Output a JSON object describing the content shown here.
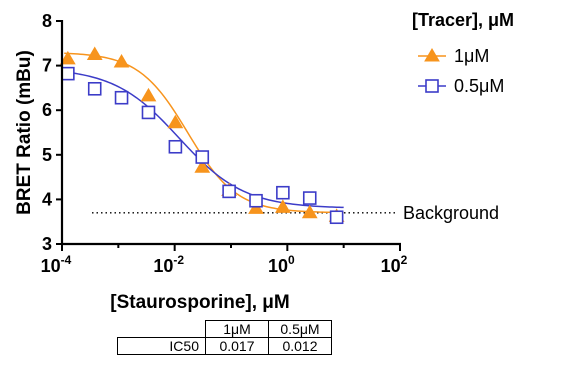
{
  "chart_data": {
    "type": "scatter",
    "xlabel": "[Staurosporine], μM",
    "ylabel": "BRET Ratio (mBu)",
    "x_scale": "log",
    "xlim": [
      0.0001,
      100
    ],
    "ylim": [
      3,
      8
    ],
    "x_ticks": [
      {
        "base": "10",
        "exp": "-4",
        "value": 0.0001
      },
      {
        "base": "10",
        "exp": "-2",
        "value": 0.01
      },
      {
        "base": "10",
        "exp": "0",
        "value": 1
      },
      {
        "base": "10",
        "exp": "2",
        "value": 100
      }
    ],
    "y_ticks": [
      "3",
      "4",
      "5",
      "6",
      "7",
      "8"
    ],
    "legend": {
      "title": "[Tracer], μM",
      "position": "top-right"
    },
    "series": [
      {
        "name": "1μM",
        "marker": "triangle",
        "color": "#f7941d",
        "x": [
          0.000127,
          0.000381,
          0.00114,
          0.00343,
          0.0103,
          0.0309,
          0.0926,
          0.278,
          0.833,
          2.5,
          7.5
        ],
        "y": [
          7.15,
          7.25,
          7.08,
          6.32,
          5.72,
          4.72,
          4.2,
          3.8,
          3.82,
          3.7,
          3.62
        ],
        "fit": {
          "top": 7.3,
          "bottom": 3.7,
          "ic50": 0.017,
          "hill": 1.0
        }
      },
      {
        "name": "0.5μM",
        "marker": "open-square",
        "color": "#3c3cc8",
        "x": [
          0.000127,
          0.000381,
          0.00114,
          0.00343,
          0.0103,
          0.0309,
          0.0926,
          0.278,
          0.833,
          2.5,
          7.5
        ],
        "y": [
          6.82,
          6.48,
          6.28,
          5.95,
          5.18,
          4.95,
          4.18,
          3.97,
          4.15,
          4.03,
          3.6
        ],
        "fit": {
          "top": 6.95,
          "bottom": 3.8,
          "ic50": 0.012,
          "hill": 0.75
        }
      }
    ],
    "reference_line": {
      "y": 3.7,
      "label": "Background",
      "style": "dotted"
    },
    "grid": false
  },
  "table": {
    "headers": [
      "1μM",
      "0.5μM"
    ],
    "rows": [
      {
        "label": "IC50",
        "values": [
          "0.017",
          "0.012"
        ]
      }
    ]
  }
}
